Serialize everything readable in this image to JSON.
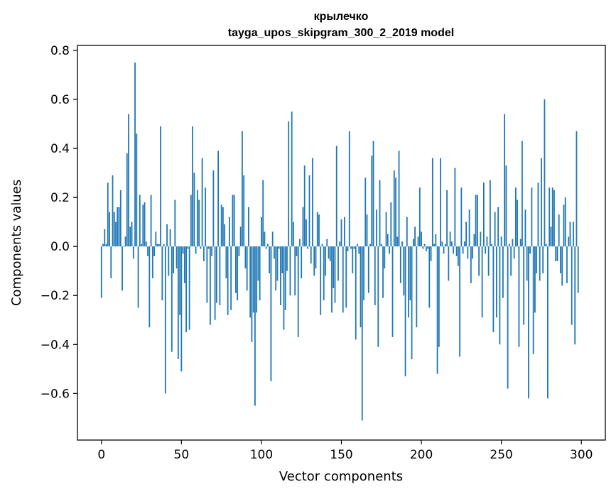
{
  "chart_data": {
    "type": "bar",
    "title": "крылечко",
    "subtitle": "tayga_upos_skipgram_300_2_2019 model",
    "xlabel": "Vector components",
    "ylabel": "Components values",
    "xlim": [
      -15,
      315
    ],
    "ylim": [
      -0.79,
      0.82
    ],
    "xticks": [
      0,
      50,
      100,
      150,
      200,
      250,
      300
    ],
    "xtick_labels": [
      "0",
      "50",
      "100",
      "150",
      "200",
      "250",
      "300"
    ],
    "yticks": [
      -0.6,
      -0.4,
      -0.2,
      0.0,
      0.2,
      0.4,
      0.6,
      0.8
    ],
    "ytick_labels": [
      "−0.6",
      "−0.4",
      "−0.2",
      "0.0",
      "0.2",
      "0.4",
      "0.6",
      "0.8"
    ],
    "bar_color": "#1f77b4",
    "grid": false,
    "values": [
      -0.21,
      0.01,
      0.07,
      0.01,
      0.26,
      0.14,
      -0.13,
      0.29,
      0.14,
      0.1,
      0.16,
      0.16,
      0.23,
      -0.18,
      0.0,
      0.04,
      0.38,
      0.54,
      0.08,
      0.1,
      -0.05,
      0.75,
      0.46,
      -0.25,
      0.21,
      0.01,
      0.17,
      0.18,
      0.02,
      -0.04,
      -0.33,
      0.21,
      -0.13,
      -0.04,
      0.06,
      0.01,
      0.01,
      0.49,
      -0.22,
      0.01,
      -0.6,
      0.09,
      -0.12,
      0.07,
      -0.43,
      -0.11,
      0.19,
      -0.09,
      -0.46,
      -0.28,
      -0.51,
      -0.03,
      -0.15,
      -0.35,
      -0.01,
      -0.34,
      0.21,
      0.49,
      0.3,
      -0.03,
      0.23,
      0.19,
      -0.01,
      0.36,
      -0.06,
      0.24,
      -0.23,
      -0.01,
      -0.32,
      -0.04,
      0.31,
      -0.3,
      -0.23,
      0.39,
      -0.24,
      0.17,
      0.16,
      0.09,
      -0.13,
      -0.28,
      0.12,
      -0.26,
      0.21,
      0.21,
      -0.19,
      -0.22,
      -0.04,
      0.08,
      0.47,
      0.29,
      -0.09,
      -0.18,
      0.16,
      -0.29,
      -0.39,
      -0.27,
      -0.65,
      -0.27,
      -0.14,
      -0.22,
      0.12,
      0.27,
      0.06,
      -0.01,
      0.01,
      -0.11,
      -0.55,
      0.06,
      -0.05,
      -0.18,
      -0.14,
      -0.01,
      -0.24,
      -0.11,
      -0.34,
      -0.26,
      -0.1,
      0.51,
      -0.2,
      0.55,
      0.1,
      -0.2,
      -0.04,
      -0.37,
      0.03,
      -0.13,
      0.16,
      0.33,
      0.11,
      -0.01,
      0.29,
      -0.07,
      0.36,
      -0.12,
      -0.09,
      0.14,
      0.13,
      -0.28,
      0.01,
      -0.22,
      -0.12,
      0.03,
      -0.05,
      -0.06,
      -0.27,
      -0.17,
      -0.23,
      0.41,
      -0.14,
      0.02,
      0.11,
      -0.27,
      0.12,
      -0.25,
      -0.02,
      0.47,
      -0.01,
      -0.11,
      -0.01,
      -0.38,
      0.01,
      -0.03,
      -0.33,
      -0.71,
      -0.22,
      0.28,
      0.13,
      -0.19,
      0.01,
      0.37,
      0.43,
      -0.24,
      0.15,
      -0.41,
      0.27,
      0.01,
      -0.21,
      -0.09,
      0.14,
      0.05,
      -0.03,
      0.18,
      -0.37,
      0.31,
      0.28,
      0.04,
      0.39,
      -0.15,
      0.02,
      -0.2,
      -0.53,
      0.12,
      -0.29,
      -0.22,
      -0.46,
      0.03,
      0.08,
      -0.33,
      0.04,
      0.24,
      0.06,
      -0.01,
      0.01,
      -0.02,
      -0.01,
      -0.25,
      -0.06,
      0.36,
      0.01,
      0.05,
      -0.52,
      -0.41,
      0.36,
      0.02,
      -0.03,
      0.01,
      0.23,
      -0.14,
      0.06,
      0.02,
      -0.03,
      0.32,
      -0.04,
      -0.08,
      -0.45,
      0.24,
      -0.03,
      0.02,
      0.1,
      -0.05,
      0.15,
      -0.15,
      -0.05,
      0.05,
      0.21,
      0.21,
      -0.12,
      0.06,
      -0.29,
      0.26,
      -0.03,
      0.04,
      -0.12,
      0.27,
      0.01,
      -0.35,
      0.14,
      -0.29,
      0.16,
      -0.4,
      0.04,
      -0.21,
      0.54,
      0.33,
      -0.58,
      0.01,
      -0.12,
      0.03,
      -0.05,
      0.24,
      0.19,
      -0.41,
      0.03,
      0.43,
      -0.32,
      0.15,
      -0.14,
      -0.62,
      -0.03,
      0.24,
      -0.44,
      -0.27,
      -0.11,
      0.26,
      -0.14,
      0.36,
      -0.11,
      0.6,
      0.01,
      -0.62,
      0.24,
      0.08,
      0.24,
      0.23,
      -0.06,
      -0.06,
      0.13,
      -0.11,
      -0.16,
      0.17,
      0.2,
      -0.15,
      0.04,
      0.1,
      -0.32,
      0.1,
      -0.4,
      0.47,
      -0.19
    ]
  }
}
